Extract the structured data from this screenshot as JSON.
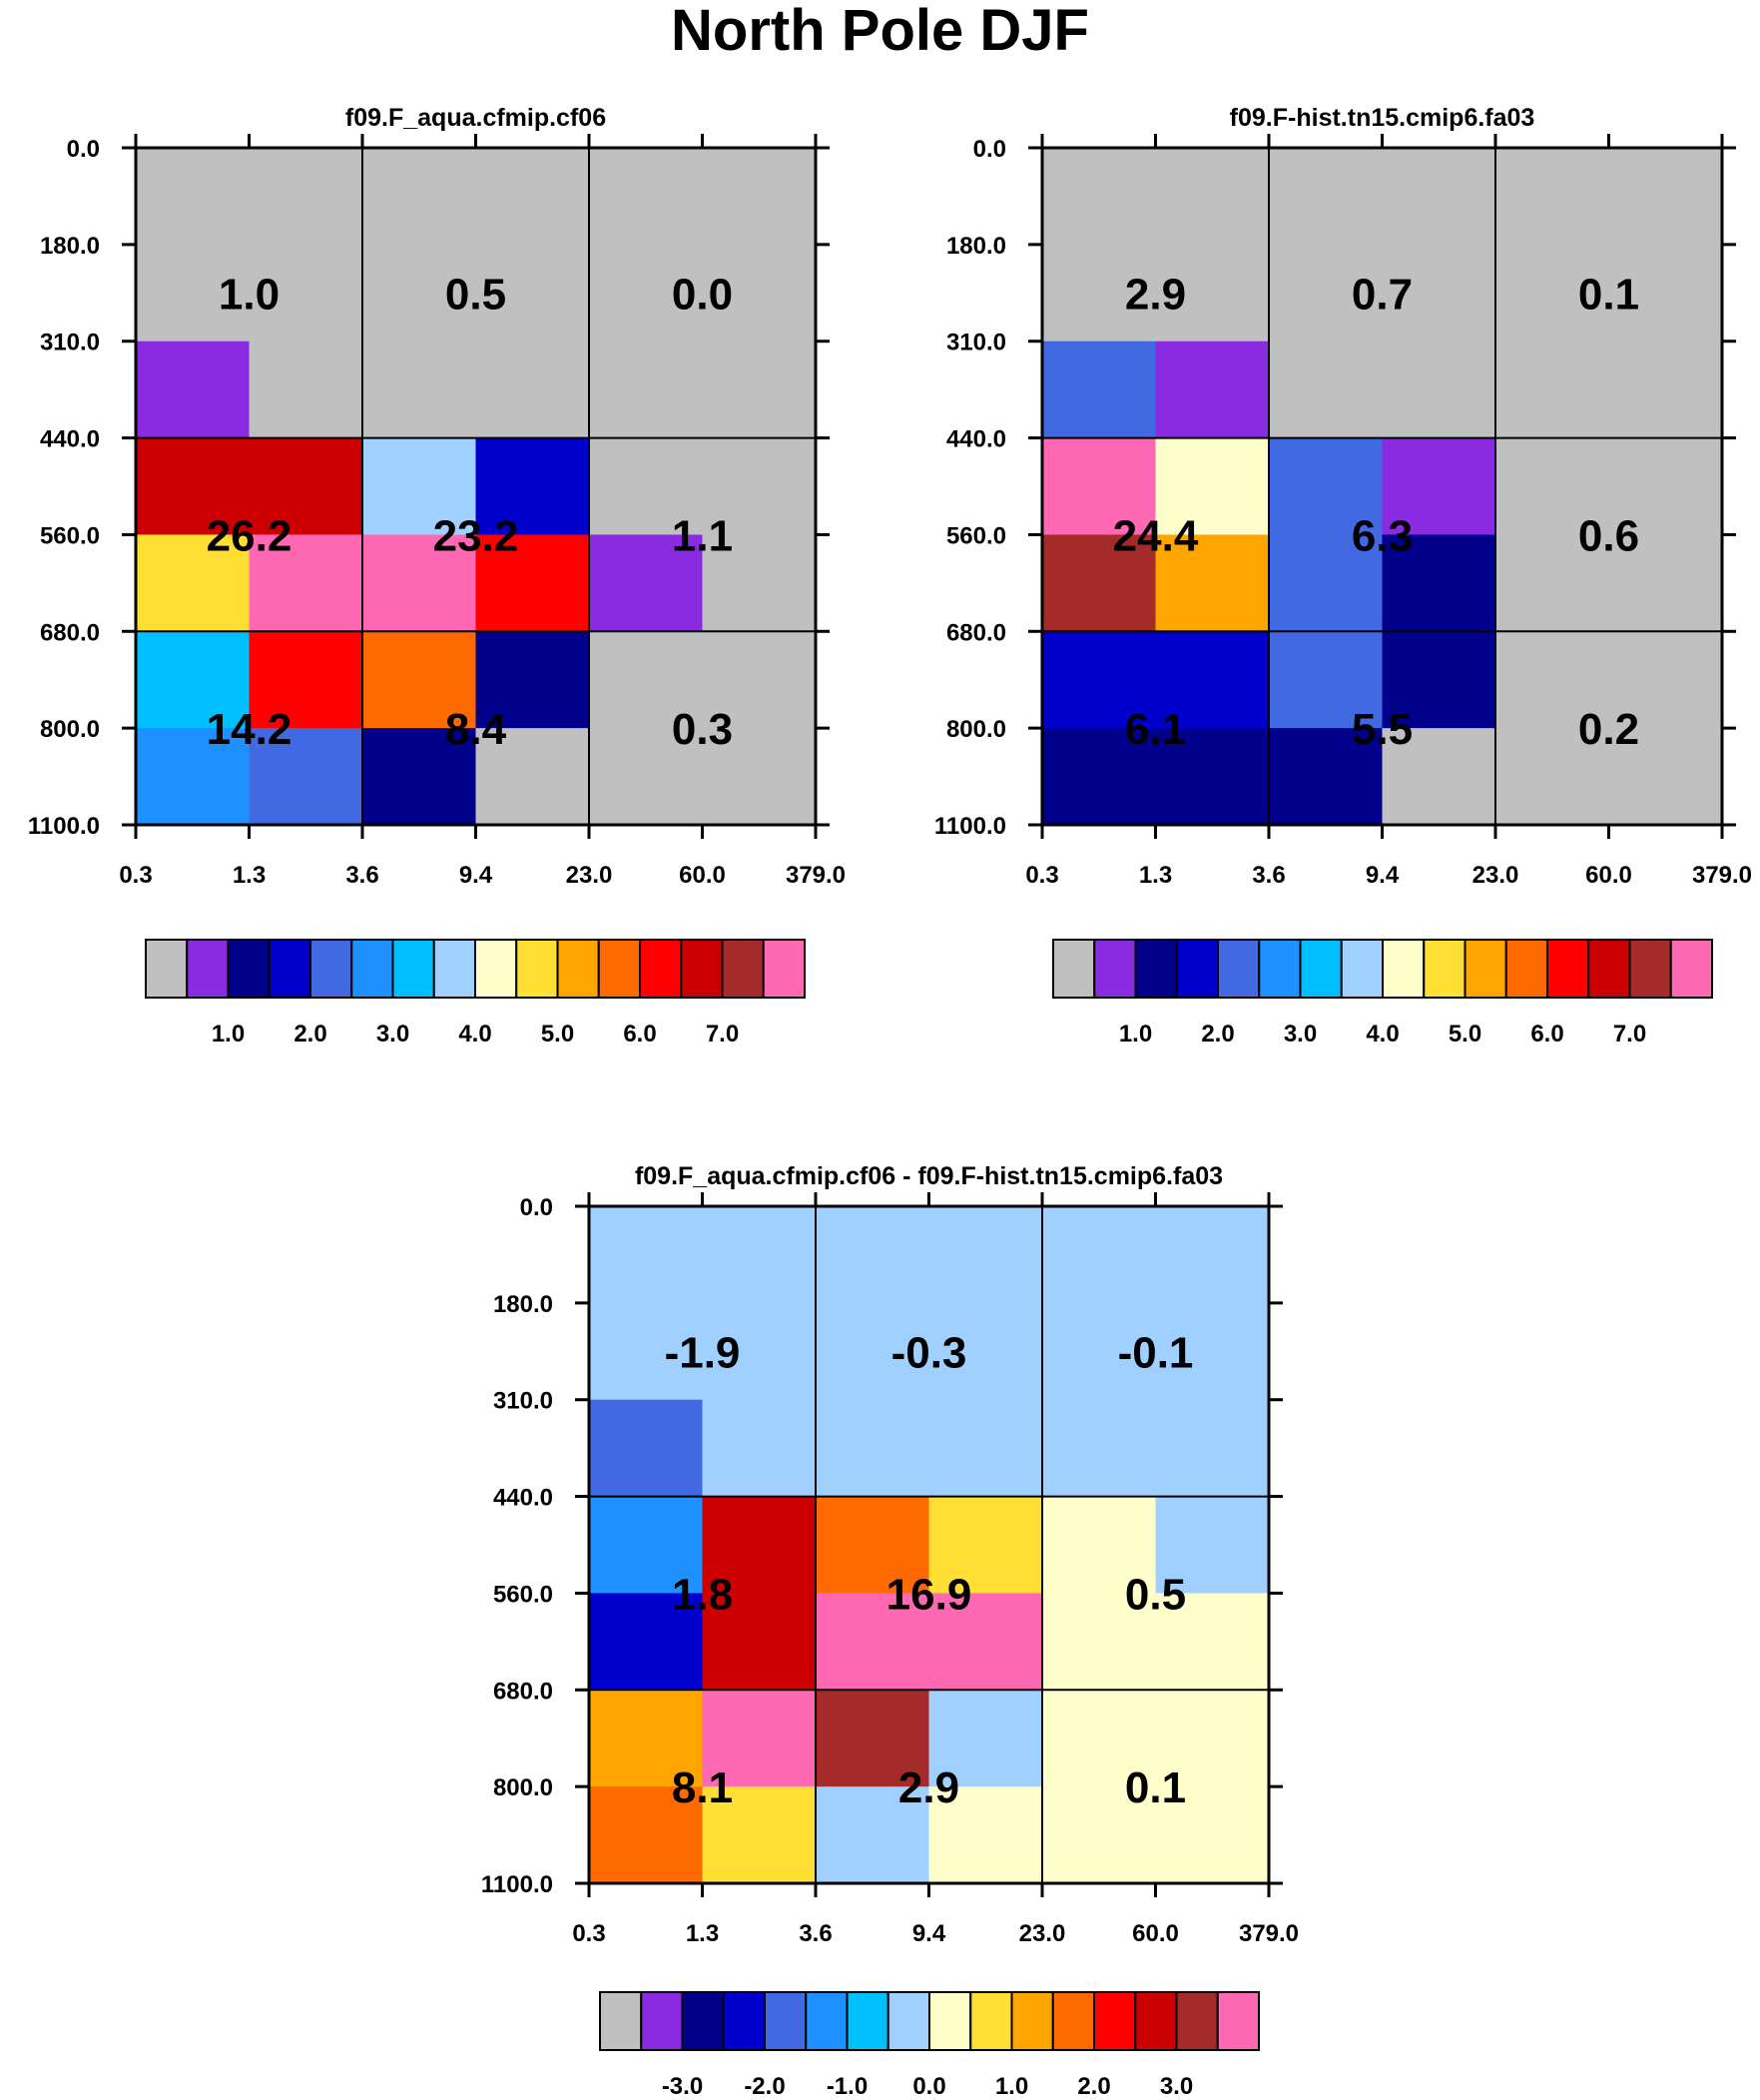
{
  "title": "North Pole DJF",
  "colors": {
    "palette": [
      "#c0c0c0",
      "#8a2be2",
      "#00008b",
      "#0000cd",
      "#4169e1",
      "#1e90ff",
      "#00bfff",
      "#a0d0ff",
      "#ffffcc",
      "#ffdf33",
      "#ffa500",
      "#ff6a00",
      "#ff0000",
      "#cc0000",
      "#a52a2a",
      "#ff69b4"
    ]
  },
  "chart_data": [
    {
      "type": "heatmap",
      "title": "f09.F_aqua.cfmip.cf06",
      "x_ticks": [
        "0.3",
        "1.3",
        "3.6",
        "9.4",
        "23.0",
        "60.0",
        "379.0"
      ],
      "y_ticks": [
        "0.0",
        "180.0",
        "310.0",
        "440.0",
        "560.0",
        "680.0",
        "800.0",
        "1100.0"
      ],
      "cell_colors": [
        [
          0,
          0,
          0,
          0,
          0,
          0
        ],
        [
          1,
          0,
          0,
          0,
          0,
          0
        ],
        [
          13,
          13,
          7,
          3,
          0,
          0
        ],
        [
          9,
          15,
          15,
          12,
          1,
          0
        ],
        [
          6,
          12,
          11,
          2,
          0,
          0
        ],
        [
          5,
          4,
          2,
          0,
          0,
          0
        ]
      ],
      "box_labels": [
        [
          "1.0",
          "0.5",
          "0.0"
        ],
        [
          "26.2",
          "23.2",
          "1.1"
        ],
        [
          "14.2",
          "8.4",
          "0.3"
        ]
      ],
      "colorbar_labels": [
        "1.0",
        "2.0",
        "3.0",
        "4.0",
        "5.0",
        "6.0",
        "7.0"
      ]
    },
    {
      "type": "heatmap",
      "title": "f09.F-hist.tn15.cmip6.fa03",
      "x_ticks": [
        "0.3",
        "1.3",
        "3.6",
        "9.4",
        "23.0",
        "60.0",
        "379.0"
      ],
      "y_ticks": [
        "0.0",
        "180.0",
        "310.0",
        "440.0",
        "560.0",
        "680.0",
        "800.0",
        "1100.0"
      ],
      "cell_colors": [
        [
          0,
          0,
          0,
          0,
          0,
          0
        ],
        [
          4,
          1,
          0,
          0,
          0,
          0
        ],
        [
          15,
          8,
          4,
          1,
          0,
          0
        ],
        [
          14,
          10,
          4,
          2,
          0,
          0
        ],
        [
          3,
          3,
          4,
          2,
          0,
          0
        ],
        [
          2,
          2,
          2,
          0,
          0,
          0
        ]
      ],
      "box_labels": [
        [
          "2.9",
          "0.7",
          "0.1"
        ],
        [
          "24.4",
          "6.3",
          "0.6"
        ],
        [
          "6.1",
          "5.5",
          "0.2"
        ]
      ],
      "colorbar_labels": [
        "1.0",
        "2.0",
        "3.0",
        "4.0",
        "5.0",
        "6.0",
        "7.0"
      ]
    },
    {
      "type": "heatmap",
      "title": "f09.F_aqua.cfmip.cf06 - f09.F-hist.tn15.cmip6.fa03",
      "x_ticks": [
        "0.3",
        "1.3",
        "3.6",
        "9.4",
        "23.0",
        "60.0",
        "379.0"
      ],
      "y_ticks": [
        "0.0",
        "180.0",
        "310.0",
        "440.0",
        "560.0",
        "680.0",
        "800.0",
        "1100.0"
      ],
      "cell_colors": [
        [
          7,
          7,
          7,
          7,
          7,
          7
        ],
        [
          4,
          7,
          7,
          7,
          7,
          7
        ],
        [
          5,
          13,
          11,
          9,
          8,
          7
        ],
        [
          3,
          13,
          15,
          15,
          8,
          8
        ],
        [
          10,
          15,
          14,
          7,
          8,
          8
        ],
        [
          11,
          9,
          7,
          8,
          8,
          8
        ]
      ],
      "box_labels": [
        [
          "-1.9",
          "-0.3",
          "-0.1"
        ],
        [
          "1.8",
          "16.9",
          "0.5"
        ],
        [
          "8.1",
          "2.9",
          "0.1"
        ]
      ],
      "colorbar_labels": [
        "-3.0",
        "-2.0",
        "-1.0",
        "0.0",
        "1.0",
        "2.0",
        "3.0"
      ]
    }
  ]
}
